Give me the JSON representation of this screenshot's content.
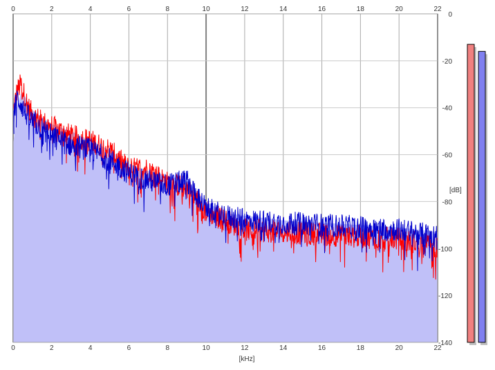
{
  "chart_data": {
    "type": "area",
    "xlabel": "[kHz]",
    "ylabel": "[dB]",
    "xlim": [
      0,
      22
    ],
    "ylim": [
      -140,
      0
    ],
    "x_ticks": [
      0,
      2,
      4,
      6,
      8,
      10,
      12,
      14,
      16,
      18,
      20,
      22
    ],
    "y_ticks": [
      0,
      -20,
      -40,
      -60,
      -80,
      -100,
      -120,
      -140
    ],
    "x_tick_labels": [
      "0",
      "2",
      "4",
      "6",
      "8",
      "10",
      "12",
      "14",
      "16",
      "18",
      "20",
      "22"
    ],
    "y_tick_labels": [
      "0",
      "-20",
      "-40",
      "-60",
      "-80",
      "-100",
      "-120",
      "-140"
    ],
    "grid": true,
    "fill_color": "#c0c0f8",
    "envelope": {
      "x": [
        0,
        0.2,
        0.4,
        0.6,
        0.8,
        1,
        1.5,
        2,
        3,
        4,
        5,
        6,
        7,
        8,
        9,
        10,
        11,
        12,
        14,
        16,
        18,
        20,
        22
      ],
      "values": [
        -56,
        -40,
        -34,
        -35,
        -38,
        -41,
        -44,
        -47,
        -50,
        -54,
        -58,
        -64,
        -67,
        -69,
        -71,
        -80,
        -85,
        -86,
        -88,
        -89,
        -90,
        -91,
        -93
      ]
    },
    "series": [
      {
        "color": "#ff0000",
        "x": [
          0,
          0.2,
          0.4,
          0.6,
          0.8,
          1,
          1.5,
          2,
          3,
          4,
          5,
          6,
          7,
          8,
          9,
          10,
          11,
          12,
          14,
          16,
          18,
          20,
          22
        ],
        "values": [
          -42,
          -33,
          -30,
          -35,
          -40,
          -43,
          -46,
          -48,
          -52,
          -54,
          -58,
          -66,
          -66,
          -72,
          -74,
          -84,
          -88,
          -92,
          -93,
          -94,
          -95,
          -96,
          -99
        ]
      },
      {
        "color": "#0000cc",
        "x": [
          0,
          0.2,
          0.4,
          0.6,
          0.8,
          1,
          1.5,
          2,
          3,
          4,
          5,
          6,
          7,
          8,
          9,
          10,
          11,
          12,
          14,
          16,
          18,
          20,
          22
        ],
        "values": [
          -44,
          -36,
          -38,
          -42,
          -44,
          -46,
          -49,
          -52,
          -56,
          -58,
          -62,
          -68,
          -71,
          -73,
          -71,
          -83,
          -86,
          -88,
          -89,
          -90,
          -91,
          -92,
          -95
        ]
      }
    ],
    "level_meters": [
      {
        "color": "#f08080",
        "value_db": -13
      },
      {
        "color": "#8080f0",
        "value_db": -16
      }
    ]
  }
}
